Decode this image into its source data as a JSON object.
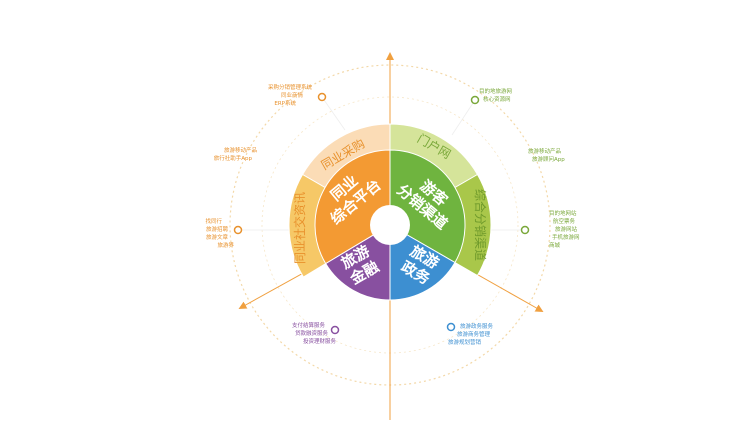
{
  "inner_segments": [
    {
      "id": "orange",
      "lines": [
        "同业",
        "综合平台"
      ],
      "color": "#f39a33",
      "start": 90,
      "end": 211
    },
    {
      "id": "green",
      "lines": [
        "游客",
        "分销渠道"
      ],
      "color": "#6fb43f",
      "start": -30,
      "end": 90
    },
    {
      "id": "blue",
      "lines": [
        "旅游",
        "政务"
      ],
      "color": "#3d8fd1",
      "start": -90,
      "end": -30
    },
    {
      "id": "purple",
      "lines": [
        "旅游",
        "金融"
      ],
      "color": "#8850a0",
      "start": 211,
      "end": 270
    }
  ],
  "outer_segments": [
    {
      "id": "tongye-caigou",
      "label": "同业采购",
      "color": "#fbdcb6",
      "text_color": "#e8912c",
      "start": 90,
      "end": 150
    },
    {
      "id": "tongye-shejiao",
      "label": "同业社交资讯",
      "color": "#f6c867",
      "text_color": "#e8912c",
      "start": 150,
      "end": 211
    },
    {
      "id": "menhu",
      "label": "门户网",
      "color": "#d5e49a",
      "text_color": "#7aa83a",
      "start": 30,
      "end": 90
    },
    {
      "id": "zonghe-fenxiao",
      "label": "综合分销渠道",
      "color": "#a9c74a",
      "text_color": "#6f9a2b",
      "start": -30,
      "end": 30
    }
  ],
  "notes": {
    "caigou": [
      "采购分销管理系统",
      "同业商情",
      "ERP系统"
    ],
    "yidong_left": [
      "旅游移动产品",
      "旅行社助手App"
    ],
    "shejiao": [
      "找同行",
      "旅游招聘",
      "旅游文章",
      "旅游界"
    ],
    "menhu": [
      "目的地旅游网",
      "核心资源网"
    ],
    "yidong_right": [
      "旅游移动产品",
      "旅游顾问App"
    ],
    "fenxiao": [
      "目的地网站",
      "航空票务",
      "旅游网站",
      "手机旅游网",
      "商城"
    ],
    "jinrong": [
      "支付结算服务",
      "贷款融资服务",
      "投资理财服务"
    ],
    "zhengwu": [
      "旅游政务服务",
      "旅游商务管理",
      "旅游规划营销"
    ]
  },
  "colors": {
    "axis": "#f0a040",
    "dashed_circle": "#f3d8a8",
    "orange": "#e8912c",
    "green": "#7aa83a",
    "purple": "#8850a0",
    "blue": "#3d8fd1"
  }
}
